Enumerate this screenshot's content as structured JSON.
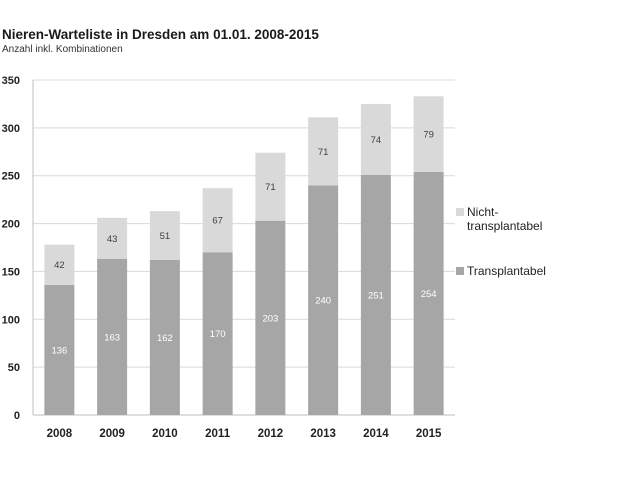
{
  "chart_data": {
    "type": "bar",
    "stacked": true,
    "title": "Nieren-Warteliste in Dresden am 01.01. 2008-2015",
    "subtitle": "Anzahl inkl. Kombinationen",
    "categories": [
      "2008",
      "2009",
      "2010",
      "2011",
      "2012",
      "2013",
      "2014",
      "2015"
    ],
    "series": [
      {
        "name": "Transplantabel",
        "values": [
          136,
          163,
          162,
          170,
          203,
          240,
          251,
          254
        ],
        "color": "#a6a6a6",
        "label_color": "#ffffff"
      },
      {
        "name": "Nicht-transplantabel",
        "values": [
          42,
          43,
          51,
          67,
          71,
          71,
          74,
          79
        ],
        "color": "#d9d9d9",
        "label_color": "#404040"
      }
    ],
    "legend_lines": {
      "Nicht-transplantabel": [
        "Nicht-",
        "transplantabel"
      ],
      "Transplantabel": [
        "Transplantabel"
      ]
    },
    "yticks": [
      "0",
      "50",
      "100",
      "150",
      "200",
      "250",
      "300",
      "350"
    ],
    "ylim": [
      0,
      350
    ],
    "grid": true,
    "legend_position": "right"
  }
}
